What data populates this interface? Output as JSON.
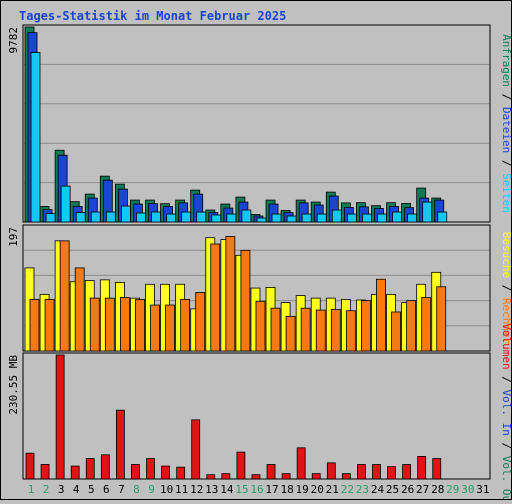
{
  "title": "Tages-Statistik im Monat Februar 2025",
  "colors": {
    "background": "#c0c0c0",
    "panel_border": "#000000",
    "grid": "#8c8c8c",
    "title": "#1846d2",
    "anfragen": "#0f7a55",
    "dateien": "#1846d2",
    "seiten": "#13c8f5",
    "besuche": "#ffff1e",
    "rechner": "#f57a13",
    "volumen": "#e01414",
    "day_weekday": "#1846d2",
    "day_weekend": "#2a9a6a",
    "day_future": "#2a9a6a"
  },
  "chart_data": [
    {
      "type": "bar",
      "name": "requests_panel",
      "ymax_label": "9782",
      "ylim": [
        0,
        9782
      ],
      "right_label": [
        "Anfragen",
        "Dateien",
        "Seiten"
      ],
      "grid": true,
      "categories": [
        "1",
        "2",
        "3",
        "4",
        "5",
        "6",
        "7",
        "8",
        "9",
        "10",
        "11",
        "12",
        "13",
        "14",
        "15",
        "16",
        "17",
        "18",
        "19",
        "20",
        "21",
        "22",
        "23",
        "24",
        "25",
        "26",
        "27",
        "28",
        "29",
        "30",
        "31"
      ],
      "series": [
        {
          "name": "Anfragen",
          "values": [
            9782,
            780,
            3600,
            1020,
            1400,
            2300,
            1900,
            1100,
            1100,
            920,
            1100,
            1600,
            600,
            900,
            1250,
            380,
            1100,
            580,
            1100,
            1000,
            1500,
            960,
            970,
            820,
            970,
            930,
            1700,
            1200,
            0,
            0,
            0
          ]
        },
        {
          "name": "Dateien",
          "values": [
            9500,
            620,
            3350,
            780,
            1200,
            2100,
            1650,
            900,
            920,
            780,
            960,
            1400,
            470,
            700,
            1000,
            300,
            900,
            470,
            960,
            850,
            1300,
            730,
            760,
            680,
            780,
            720,
            1200,
            1100,
            0,
            0,
            0
          ]
        },
        {
          "name": "Seiten",
          "values": [
            8500,
            420,
            1800,
            480,
            500,
            500,
            800,
            450,
            500,
            400,
            500,
            500,
            350,
            400,
            600,
            200,
            400,
            300,
            400,
            400,
            600,
            400,
            400,
            400,
            500,
            400,
            1000,
            500,
            0,
            0,
            0
          ]
        }
      ]
    },
    {
      "type": "bar",
      "name": "visits_panel",
      "ymax_label": "197",
      "ylim": [
        0,
        197
      ],
      "right_label": [
        "Besuche",
        "Rechner"
      ],
      "grid": true,
      "categories": [
        "1",
        "2",
        "3",
        "4",
        "5",
        "6",
        "7",
        "8",
        "9",
        "10",
        "11",
        "12",
        "13",
        "14",
        "15",
        "16",
        "17",
        "18",
        "19",
        "20",
        "21",
        "22",
        "23",
        "24",
        "25",
        "26",
        "27",
        "28",
        "29",
        "30",
        "31"
      ],
      "series": [
        {
          "name": "Besuche",
          "values": [
            132,
            90,
            175,
            110,
            112,
            113,
            109,
            84,
            106,
            106,
            106,
            67,
            180,
            177,
            152,
            100,
            101,
            77,
            88,
            84,
            84,
            82,
            81,
            90,
            90,
            77,
            106,
            125,
            0,
            0,
            0
          ]
        },
        {
          "name": "Rechner",
          "values": [
            82,
            82,
            175,
            132,
            84,
            84,
            85,
            82,
            73,
            73,
            82,
            93,
            170,
            182,
            160,
            79,
            68,
            55,
            68,
            65,
            66,
            64,
            80,
            114,
            62,
            80,
            85,
            102,
            0,
            0,
            0
          ]
        }
      ]
    },
    {
      "type": "bar",
      "name": "volume_panel",
      "ymax_label": "230.55 MB",
      "ylim": [
        0,
        230.55
      ],
      "right_label": [
        "Volumen",
        "Vol. In",
        "Vol. Out"
      ],
      "grid": false,
      "categories": [
        "1",
        "2",
        "3",
        "4",
        "5",
        "6",
        "7",
        "8",
        "9",
        "10",
        "11",
        "12",
        "13",
        "14",
        "15",
        "16",
        "17",
        "18",
        "19",
        "20",
        "21",
        "22",
        "23",
        "24",
        "25",
        "26",
        "27",
        "28",
        "29",
        "30",
        "31"
      ],
      "series": [
        {
          "name": "Volumen",
          "values": [
            48,
            27,
            230.55,
            24,
            38,
            45,
            128,
            27,
            38,
            24,
            22,
            110,
            8,
            10,
            50,
            8,
            27,
            10,
            58,
            10,
            30,
            10,
            27,
            27,
            23,
            27,
            42,
            38,
            0,
            0,
            0
          ]
        }
      ]
    }
  ],
  "days": [
    {
      "label": "1",
      "kind": "weekend"
    },
    {
      "label": "2",
      "kind": "weekend"
    },
    {
      "label": "3",
      "kind": "weekday"
    },
    {
      "label": "4",
      "kind": "weekday"
    },
    {
      "label": "5",
      "kind": "weekday"
    },
    {
      "label": "6",
      "kind": "weekday"
    },
    {
      "label": "7",
      "kind": "weekday"
    },
    {
      "label": "8",
      "kind": "weekend"
    },
    {
      "label": "9",
      "kind": "weekend"
    },
    {
      "label": "10",
      "kind": "weekday"
    },
    {
      "label": "11",
      "kind": "weekday"
    },
    {
      "label": "12",
      "kind": "weekday"
    },
    {
      "label": "13",
      "kind": "weekday"
    },
    {
      "label": "14",
      "kind": "weekday"
    },
    {
      "label": "15",
      "kind": "weekend"
    },
    {
      "label": "16",
      "kind": "weekend"
    },
    {
      "label": "17",
      "kind": "weekday"
    },
    {
      "label": "18",
      "kind": "weekday"
    },
    {
      "label": "19",
      "kind": "weekday"
    },
    {
      "label": "20",
      "kind": "weekday"
    },
    {
      "label": "21",
      "kind": "weekday"
    },
    {
      "label": "22",
      "kind": "weekend"
    },
    {
      "label": "23",
      "kind": "weekend"
    },
    {
      "label": "24",
      "kind": "weekday"
    },
    {
      "label": "25",
      "kind": "weekday"
    },
    {
      "label": "26",
      "kind": "weekday"
    },
    {
      "label": "27",
      "kind": "weekday"
    },
    {
      "label": "28",
      "kind": "weekday"
    },
    {
      "label": "29",
      "kind": "weekend"
    },
    {
      "label": "30",
      "kind": "weekend"
    },
    {
      "label": "31",
      "kind": "weekday"
    }
  ]
}
